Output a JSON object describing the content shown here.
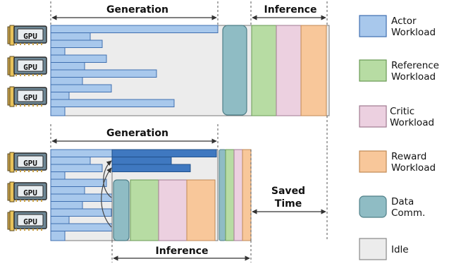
{
  "labels": {
    "top_generation": "Generation",
    "top_inference": "Inference",
    "bottom_generation": "Generation",
    "bottom_inference": "Inference",
    "saved_time_line1": "Saved",
    "saved_time_line2": "Time",
    "gpu": "GPU"
  },
  "legend": [
    {
      "line1": "Actor",
      "line2": "Workload",
      "color": "#a8c8ec",
      "border": "#3f6fb0"
    },
    {
      "line1": "Reference",
      "line2": "Workload",
      "color": "#b7dca3",
      "border": "#6a9a55"
    },
    {
      "line1": "Critic",
      "line2": "Workload",
      "color": "#ecd0e0",
      "border": "#a07a90"
    },
    {
      "line1": "Reward",
      "line2": "Workload",
      "color": "#f8c79a",
      "border": "#c08a55"
    },
    {
      "line1": "Data",
      "line2": "Comm.",
      "color": "#8fbcc4",
      "border": "#4f7f88"
    },
    {
      "line1": "Idle",
      "line2": "",
      "color": "#ececec",
      "border": "#888888"
    }
  ],
  "colors": {
    "actor": "#a8c8ec",
    "actor_dark": "#3f78c0",
    "reference": "#b7dca3",
    "critic": "#ecd0e0",
    "reward": "#f8c79a",
    "data_comm": "#8fbcc4",
    "idle": "#ececec"
  }
}
